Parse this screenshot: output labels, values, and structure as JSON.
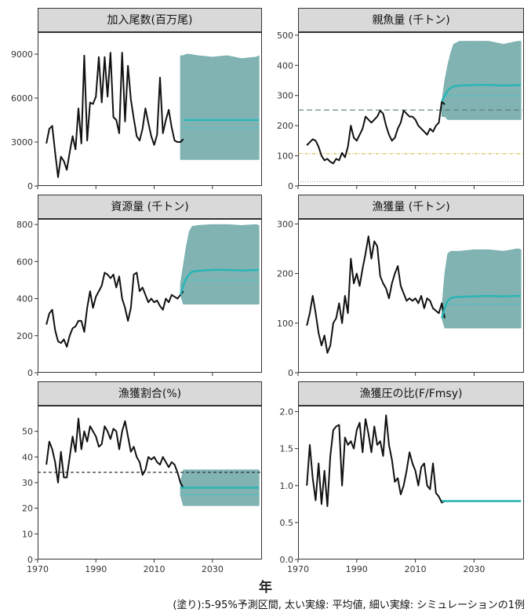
{
  "xlabel": "年",
  "caption": "(塗り):5-95%予測区間, 太い実線: 平均値, 細い実線: シミュレーションの1例",
  "colors": {
    "history": "#111111",
    "mean": "#2bb5b5",
    "band": "#5f9e9e",
    "sim": "#4bbfc6"
  },
  "chart_data": [
    {
      "type": "line",
      "title": "加入尾数(百万尾)",
      "xlim": [
        1970,
        2047
      ],
      "ylim": [
        0,
        10500
      ],
      "yticks": [
        0,
        3000,
        6000,
        9000
      ],
      "xticks": [
        1970,
        1990,
        2010,
        2030
      ],
      "history": {
        "x": [
          1973,
          1974,
          1975,
          1976,
          1977,
          1978,
          1979,
          1980,
          1981,
          1982,
          1983,
          1984,
          1985,
          1986,
          1987,
          1988,
          1989,
          1990,
          1991,
          1992,
          1993,
          1994,
          1995,
          1996,
          1997,
          1998,
          1999,
          2000,
          2001,
          2002,
          2003,
          2004,
          2005,
          2006,
          2007,
          2008,
          2009,
          2010,
          2011,
          2012,
          2013,
          2014,
          2015,
          2016,
          2017,
          2018,
          2019,
          2020
        ],
        "y": [
          2900,
          3900,
          4100,
          2300,
          600,
          2000,
          1700,
          1100,
          2300,
          3400,
          2500,
          5300,
          2900,
          8900,
          3100,
          5700,
          5600,
          6100,
          8800,
          5700,
          8800,
          6100,
          9100,
          4700,
          4500,
          3600,
          9100,
          4400,
          8200,
          5900,
          4600,
          3400,
          3100,
          3900,
          5300,
          4300,
          3400,
          2800,
          3500,
          7400,
          3600,
          4500,
          5200,
          4000,
          3100,
          3000,
          3000,
          3200
        ]
      },
      "band": {
        "x": [
          2019,
          2020,
          2021,
          2022,
          2025,
          2030,
          2035,
          2040,
          2045,
          2046
        ],
        "lower": [
          1800,
          1800,
          1800,
          1800,
          1800,
          1800,
          1800,
          1800,
          1800,
          1800
        ],
        "upper": [
          8900,
          8900,
          9000,
          9000,
          8900,
          8800,
          8900,
          8700,
          8800,
          8900
        ]
      },
      "mean": {
        "x": [
          2020,
          2025,
          2030,
          2035,
          2040,
          2046
        ],
        "y": [
          4500,
          4500,
          4500,
          4500,
          4500,
          4500
        ]
      }
    },
    {
      "type": "line",
      "title": "親魚量 (千トン)",
      "xlim": [
        1970,
        2047
      ],
      "ylim": [
        0,
        510
      ],
      "yticks": [
        0,
        100,
        200,
        300,
        400,
        500
      ],
      "xticks": [
        1970,
        1990,
        2010,
        2030
      ],
      "history": {
        "x": [
          1973,
          1974,
          1975,
          1976,
          1977,
          1978,
          1979,
          1980,
          1981,
          1982,
          1983,
          1984,
          1985,
          1986,
          1987,
          1988,
          1989,
          1990,
          1991,
          1992,
          1993,
          1994,
          1995,
          1996,
          1997,
          1998,
          1999,
          2000,
          2001,
          2002,
          2003,
          2004,
          2005,
          2006,
          2007,
          2008,
          2009,
          2010,
          2011,
          2012,
          2013,
          2014,
          2015,
          2016,
          2017,
          2018,
          2019,
          2020
        ],
        "y": [
          135,
          145,
          155,
          150,
          130,
          100,
          85,
          90,
          80,
          75,
          90,
          85,
          110,
          95,
          130,
          200,
          160,
          150,
          170,
          190,
          230,
          220,
          210,
          220,
          230,
          250,
          240,
          200,
          170,
          150,
          160,
          190,
          210,
          250,
          240,
          230,
          230,
          220,
          200,
          190,
          180,
          170,
          190,
          180,
          200,
          210,
          280,
          270
        ]
      },
      "band": {
        "x": [
          2019,
          2020,
          2021,
          2022,
          2023,
          2025,
          2030,
          2035,
          2040,
          2045,
          2046
        ],
        "lower": [
          230,
          230,
          220,
          220,
          220,
          220,
          220,
          220,
          220,
          220,
          220
        ],
        "upper": [
          280,
          350,
          400,
          440,
          470,
          480,
          480,
          480,
          470,
          480,
          480
        ]
      },
      "mean": {
        "x": [
          2019,
          2020,
          2021,
          2022,
          2023,
          2025,
          2030,
          2035,
          2040,
          2046
        ],
        "y": [
          280,
          300,
          315,
          325,
          330,
          333,
          335,
          335,
          333,
          335
        ]
      },
      "reference_lines": [
        {
          "y": 252,
          "color": "#5b7a70",
          "dash": "7,4"
        },
        {
          "y": 107,
          "color": "#c9b12a",
          "dash": "4,2,1,2"
        },
        {
          "y": 14,
          "color": "#999999",
          "dash": "1,2"
        }
      ]
    },
    {
      "type": "line",
      "title": "資源量 (千トン)",
      "xlim": [
        1970,
        2047
      ],
      "ylim": [
        0,
        830
      ],
      "yticks": [
        0,
        200,
        400,
        600,
        800
      ],
      "xticks": [
        1970,
        1990,
        2010,
        2030
      ],
      "history": {
        "x": [
          1973,
          1974,
          1975,
          1976,
          1977,
          1978,
          1979,
          1980,
          1981,
          1982,
          1983,
          1984,
          1985,
          1986,
          1987,
          1988,
          1989,
          1990,
          1991,
          1992,
          1993,
          1994,
          1995,
          1996,
          1997,
          1998,
          1999,
          2000,
          2001,
          2002,
          2003,
          2004,
          2005,
          2006,
          2007,
          2008,
          2009,
          2010,
          2011,
          2012,
          2013,
          2014,
          2015,
          2016,
          2017,
          2018,
          2019,
          2020
        ],
        "y": [
          260,
          320,
          340,
          230,
          170,
          160,
          180,
          140,
          200,
          240,
          250,
          280,
          280,
          220,
          350,
          440,
          350,
          410,
          440,
          470,
          540,
          530,
          510,
          530,
          460,
          520,
          400,
          350,
          280,
          350,
          530,
          540,
          440,
          460,
          420,
          380,
          400,
          380,
          390,
          360,
          340,
          400,
          380,
          420,
          410,
          400,
          420,
          440
        ]
      },
      "band": {
        "x": [
          2019,
          2020,
          2021,
          2022,
          2023,
          2025,
          2030,
          2035,
          2040,
          2045,
          2046
        ],
        "lower": [
          420,
          370,
          370,
          370,
          370,
          370,
          370,
          370,
          370,
          370,
          370
        ],
        "upper": [
          480,
          580,
          680,
          760,
          790,
          795,
          800,
          800,
          795,
          800,
          795
        ]
      },
      "mean": {
        "x": [
          2019,
          2020,
          2021,
          2022,
          2023,
          2025,
          2030,
          2035,
          2040,
          2046
        ],
        "y": [
          420,
          470,
          510,
          530,
          545,
          550,
          555,
          555,
          552,
          555
        ]
      }
    },
    {
      "type": "line",
      "title": "漁獲量 (千トン)",
      "xlim": [
        1970,
        2047
      ],
      "ylim": [
        0,
        310
      ],
      "yticks": [
        0,
        100,
        200,
        300
      ],
      "xticks": [
        1970,
        1990,
        2010,
        2030
      ],
      "history": {
        "x": [
          1973,
          1974,
          1975,
          1976,
          1977,
          1978,
          1979,
          1980,
          1981,
          1982,
          1983,
          1984,
          1985,
          1986,
          1987,
          1988,
          1989,
          1990,
          1991,
          1992,
          1993,
          1994,
          1995,
          1996,
          1997,
          1998,
          1999,
          2000,
          2001,
          2002,
          2003,
          2004,
          2005,
          2006,
          2007,
          2008,
          2009,
          2010,
          2011,
          2012,
          2013,
          2014,
          2015,
          2016,
          2017,
          2018,
          2019,
          2020
        ],
        "y": [
          95,
          120,
          155,
          120,
          80,
          55,
          75,
          40,
          55,
          100,
          110,
          140,
          100,
          155,
          120,
          230,
          180,
          200,
          175,
          210,
          240,
          275,
          230,
          265,
          255,
          195,
          180,
          170,
          150,
          180,
          200,
          215,
          175,
          160,
          145,
          150,
          145,
          150,
          140,
          155,
          130,
          150,
          145,
          130,
          125,
          120,
          140,
          110
        ]
      },
      "band": {
        "x": [
          2019,
          2020,
          2021,
          2022,
          2023,
          2025,
          2030,
          2035,
          2040,
          2045,
          2046
        ],
        "lower": [
          110,
          90,
          90,
          90,
          90,
          90,
          90,
          90,
          90,
          90,
          90
        ],
        "upper": [
          130,
          200,
          240,
          245,
          245,
          245,
          248,
          248,
          245,
          250,
          248
        ]
      },
      "mean": {
        "x": [
          2019,
          2020,
          2021,
          2022,
          2023,
          2025,
          2030,
          2035,
          2040,
          2046
        ],
        "y": [
          110,
          130,
          145,
          150,
          152,
          153,
          154,
          155,
          154,
          155
        ]
      }
    },
    {
      "type": "line",
      "title": "漁獲割合(%)",
      "xlim": [
        1970,
        2047
      ],
      "ylim": [
        0,
        60
      ],
      "yticks": [
        0,
        10,
        20,
        30,
        40,
        50
      ],
      "xticks": [
        1970,
        1990,
        2010,
        2030
      ],
      "xtick_labels": [
        "1970",
        "1990",
        "2010",
        "2030"
      ],
      "history": {
        "x": [
          1973,
          1974,
          1975,
          1976,
          1977,
          1978,
          1979,
          1980,
          1981,
          1982,
          1983,
          1984,
          1985,
          1986,
          1987,
          1988,
          1989,
          1990,
          1991,
          1992,
          1993,
          1994,
          1995,
          1996,
          1997,
          1998,
          1999,
          2000,
          2001,
          2002,
          2003,
          2004,
          2005,
          2006,
          2007,
          2008,
          2009,
          2010,
          2011,
          2012,
          2013,
          2014,
          2015,
          2016,
          2017,
          2018,
          2019,
          2020
        ],
        "y": [
          37,
          46,
          43,
          38,
          30,
          42,
          32,
          32,
          40,
          48,
          42,
          55,
          43,
          50,
          46,
          52,
          50,
          48,
          44,
          45,
          52,
          50,
          47,
          51,
          50,
          43,
          50,
          54,
          48,
          42,
          44,
          40,
          38,
          33,
          35,
          40,
          39,
          40,
          38,
          37,
          40,
          38,
          36,
          38,
          37,
          34,
          30,
          28
        ]
      },
      "band": {
        "x": [
          2019,
          2020,
          2021,
          2022,
          2025,
          2030,
          2035,
          2040,
          2045,
          2046
        ],
        "lower": [
          25,
          21,
          21,
          21,
          21,
          21,
          21,
          21,
          21,
          21
        ],
        "upper": [
          30,
          35,
          35,
          35,
          35,
          35,
          35,
          35,
          35,
          35
        ]
      },
      "mean": {
        "x": [
          2019,
          2020,
          2021,
          2022,
          2025,
          2030,
          2035,
          2040,
          2046
        ],
        "y": [
          28,
          28,
          28,
          28,
          28,
          28,
          28,
          28,
          28
        ]
      },
      "reference_lines": [
        {
          "y": 34,
          "color": "#222222",
          "dash": "4,3"
        }
      ]
    },
    {
      "type": "line",
      "title": "漁獲圧の比(F/Fmsy)",
      "xlim": [
        1970,
        2047
      ],
      "ylim": [
        0,
        2.08
      ],
      "yticks": [
        0.0,
        0.5,
        1.0,
        1.5,
        2.0
      ],
      "ytick_labels": [
        "0.0",
        "0.5",
        "1.0",
        "1.5",
        "2.0"
      ],
      "xticks": [
        1970,
        1990,
        2010,
        2030
      ],
      "xtick_labels": [
        "1970",
        "1990",
        "2010",
        "2030"
      ],
      "history": {
        "x": [
          1973,
          1974,
          1975,
          1976,
          1977,
          1978,
          1979,
          1980,
          1981,
          1982,
          1983,
          1984,
          1985,
          1986,
          1987,
          1988,
          1989,
          1990,
          1991,
          1992,
          1993,
          1994,
          1995,
          1996,
          1997,
          1998,
          1999,
          2000,
          2001,
          2002,
          2003,
          2004,
          2005,
          2006,
          2007,
          2008,
          2009,
          2010,
          2011,
          2012,
          2013,
          2014,
          2015,
          2016,
          2017,
          2018,
          2019,
          2020
        ],
        "y": [
          1.0,
          1.55,
          1.1,
          0.8,
          1.3,
          0.75,
          1.2,
          0.72,
          1.4,
          1.75,
          1.8,
          1.82,
          1.0,
          1.65,
          1.55,
          1.6,
          1.5,
          1.75,
          1.85,
          1.45,
          1.9,
          1.7,
          1.45,
          1.8,
          1.55,
          1.6,
          1.4,
          1.95,
          1.55,
          1.35,
          1.05,
          1.1,
          0.88,
          1.0,
          1.2,
          1.45,
          1.3,
          1.2,
          1.0,
          1.25,
          1.3,
          1.0,
          0.95,
          1.3,
          0.9,
          0.85,
          0.77,
          0.79
        ]
      },
      "mean": {
        "x": [
          2019,
          2020,
          2025,
          2030,
          2035,
          2040,
          2046
        ],
        "y": [
          0.79,
          0.79,
          0.79,
          0.79,
          0.79,
          0.79,
          0.79
        ]
      }
    }
  ]
}
